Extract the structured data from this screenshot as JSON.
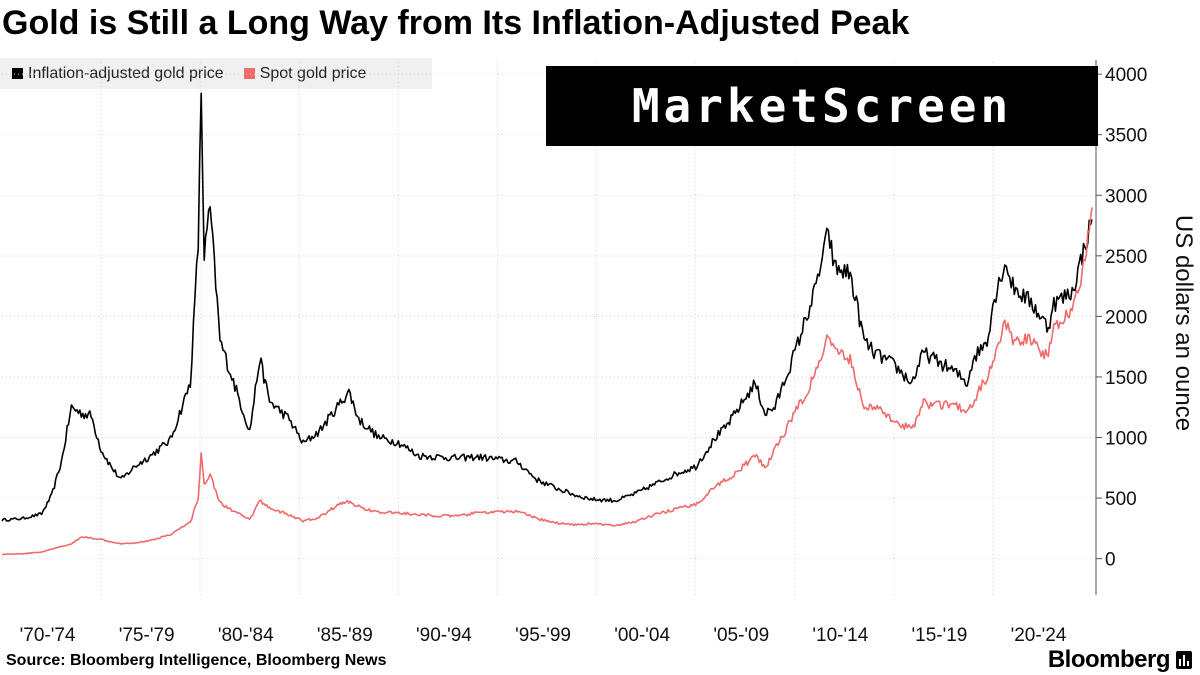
{
  "title": "Gold is Still a Long Way from Its Inflation-Adjusted Peak",
  "watermark": "MarketScreen",
  "source": "Source: Bloomberg Intelligence, Bloomberg News",
  "brand": "Bloomberg",
  "chart_data": {
    "type": "line",
    "title": "Gold is Still a Long Way from Its Inflation-Adjusted Peak",
    "ylabel": "US dollars an ounce",
    "xlabel": "",
    "ylim": [
      -300,
      4100
    ],
    "xlim": [
      1970.0,
      2025.2
    ],
    "y_ticks": [
      0,
      500,
      1000,
      1500,
      2000,
      2500,
      3000,
      3500,
      4000
    ],
    "x_tick_labels": [
      "'70-'74",
      "'75-'79",
      "'80-'84",
      "'85-'89",
      "'90-'94",
      "'95-'99",
      "'00-'04",
      "'05-'09",
      "'10-'14",
      "'15-'19",
      "'20-'24"
    ],
    "legend_position": "top-left",
    "grid": true,
    "series": [
      {
        "name": "Inflation-adjusted gold price",
        "color": "#000000",
        "x": [
          1970.0,
          1971.0,
          1972.0,
          1972.5,
          1973.0,
          1973.5,
          1974.0,
          1974.5,
          1975.0,
          1975.5,
          1976.0,
          1976.7,
          1977.5,
          1978.5,
          1979.5,
          1979.9,
          1980.05,
          1980.2,
          1980.5,
          1981.0,
          1981.6,
          1982.5,
          1983.0,
          1983.5,
          1984.5,
          1985.2,
          1986.0,
          1987.0,
          1987.5,
          1988.0,
          1989.0,
          1990.0,
          1991.0,
          1993.0,
          1994.0,
          1995.0,
          1996.0,
          1997.0,
          1998.0,
          1999.0,
          1999.8,
          2001.0,
          2002.0,
          2003.0,
          2004.0,
          2005.0,
          2006.0,
          2006.5,
          2007.0,
          2008.0,
          2008.5,
          2009.0,
          2010.0,
          2011.0,
          2011.7,
          2012.0,
          2012.8,
          2013.5,
          2014.0,
          2015.0,
          2015.9,
          2016.5,
          2017.0,
          2018.0,
          2018.7,
          2019.0,
          2019.7,
          2020.0,
          2020.6,
          2021.0,
          2022.0,
          2022.8,
          2023.0,
          2024.0,
          2024.5,
          2025.0
        ],
        "values": [
          320,
          330,
          370,
          520,
          800,
          1250,
          1200,
          1180,
          900,
          760,
          650,
          760,
          850,
          980,
          1450,
          2600,
          3850,
          2500,
          2900,
          1800,
          1500,
          1050,
          1650,
          1300,
          1150,
          950,
          1050,
          1270,
          1380,
          1150,
          1000,
          960,
          850,
          830,
          840,
          820,
          800,
          650,
          580,
          520,
          490,
          480,
          540,
          620,
          700,
          760,
          1000,
          1080,
          1200,
          1450,
          1200,
          1250,
          1700,
          2200,
          2700,
          2400,
          2350,
          1800,
          1700,
          1600,
          1450,
          1700,
          1650,
          1550,
          1450,
          1650,
          1800,
          2100,
          2450,
          2250,
          2100,
          1900,
          2100,
          2200,
          2500,
          2800
        ]
      },
      {
        "name": "Spot gold price",
        "color": "#f06a6a",
        "x": [
          1970.0,
          1971.0,
          1972.0,
          1973.0,
          1973.5,
          1974.0,
          1974.5,
          1975.0,
          1975.5,
          1976.0,
          1976.7,
          1977.5,
          1978.5,
          1979.5,
          1979.9,
          1980.05,
          1980.2,
          1980.5,
          1981.0,
          1981.6,
          1982.5,
          1983.0,
          1983.5,
          1984.5,
          1985.2,
          1986.0,
          1987.0,
          1987.5,
          1988.0,
          1989.0,
          1990.0,
          1991.0,
          1993.0,
          1994.0,
          1995.0,
          1996.0,
          1997.0,
          1998.0,
          1999.0,
          1999.8,
          2001.0,
          2002.0,
          2003.0,
          2004.0,
          2005.0,
          2006.0,
          2006.5,
          2007.0,
          2008.0,
          2008.5,
          2009.0,
          2010.0,
          2011.0,
          2011.7,
          2012.0,
          2012.8,
          2013.5,
          2014.0,
          2015.0,
          2015.9,
          2016.5,
          2017.0,
          2018.0,
          2018.7,
          2019.0,
          2019.7,
          2020.0,
          2020.6,
          2021.0,
          2022.0,
          2022.8,
          2023.0,
          2024.0,
          2024.5,
          2025.0
        ],
        "values": [
          36,
          40,
          55,
          100,
          120,
          180,
          170,
          160,
          140,
          125,
          130,
          150,
          200,
          300,
          500,
          850,
          620,
          700,
          460,
          400,
          320,
          480,
          420,
          360,
          310,
          340,
          450,
          470,
          430,
          380,
          380,
          360,
          350,
          380,
          385,
          390,
          330,
          295,
          280,
          290,
          270,
          310,
          365,
          410,
          445,
          600,
          650,
          700,
          850,
          750,
          900,
          1200,
          1500,
          1850,
          1700,
          1650,
          1250,
          1250,
          1150,
          1060,
          1300,
          1260,
          1280,
          1190,
          1300,
          1500,
          1600,
          1950,
          1800,
          1800,
          1650,
          1900,
          2050,
          2350,
          2900
        ]
      }
    ]
  }
}
